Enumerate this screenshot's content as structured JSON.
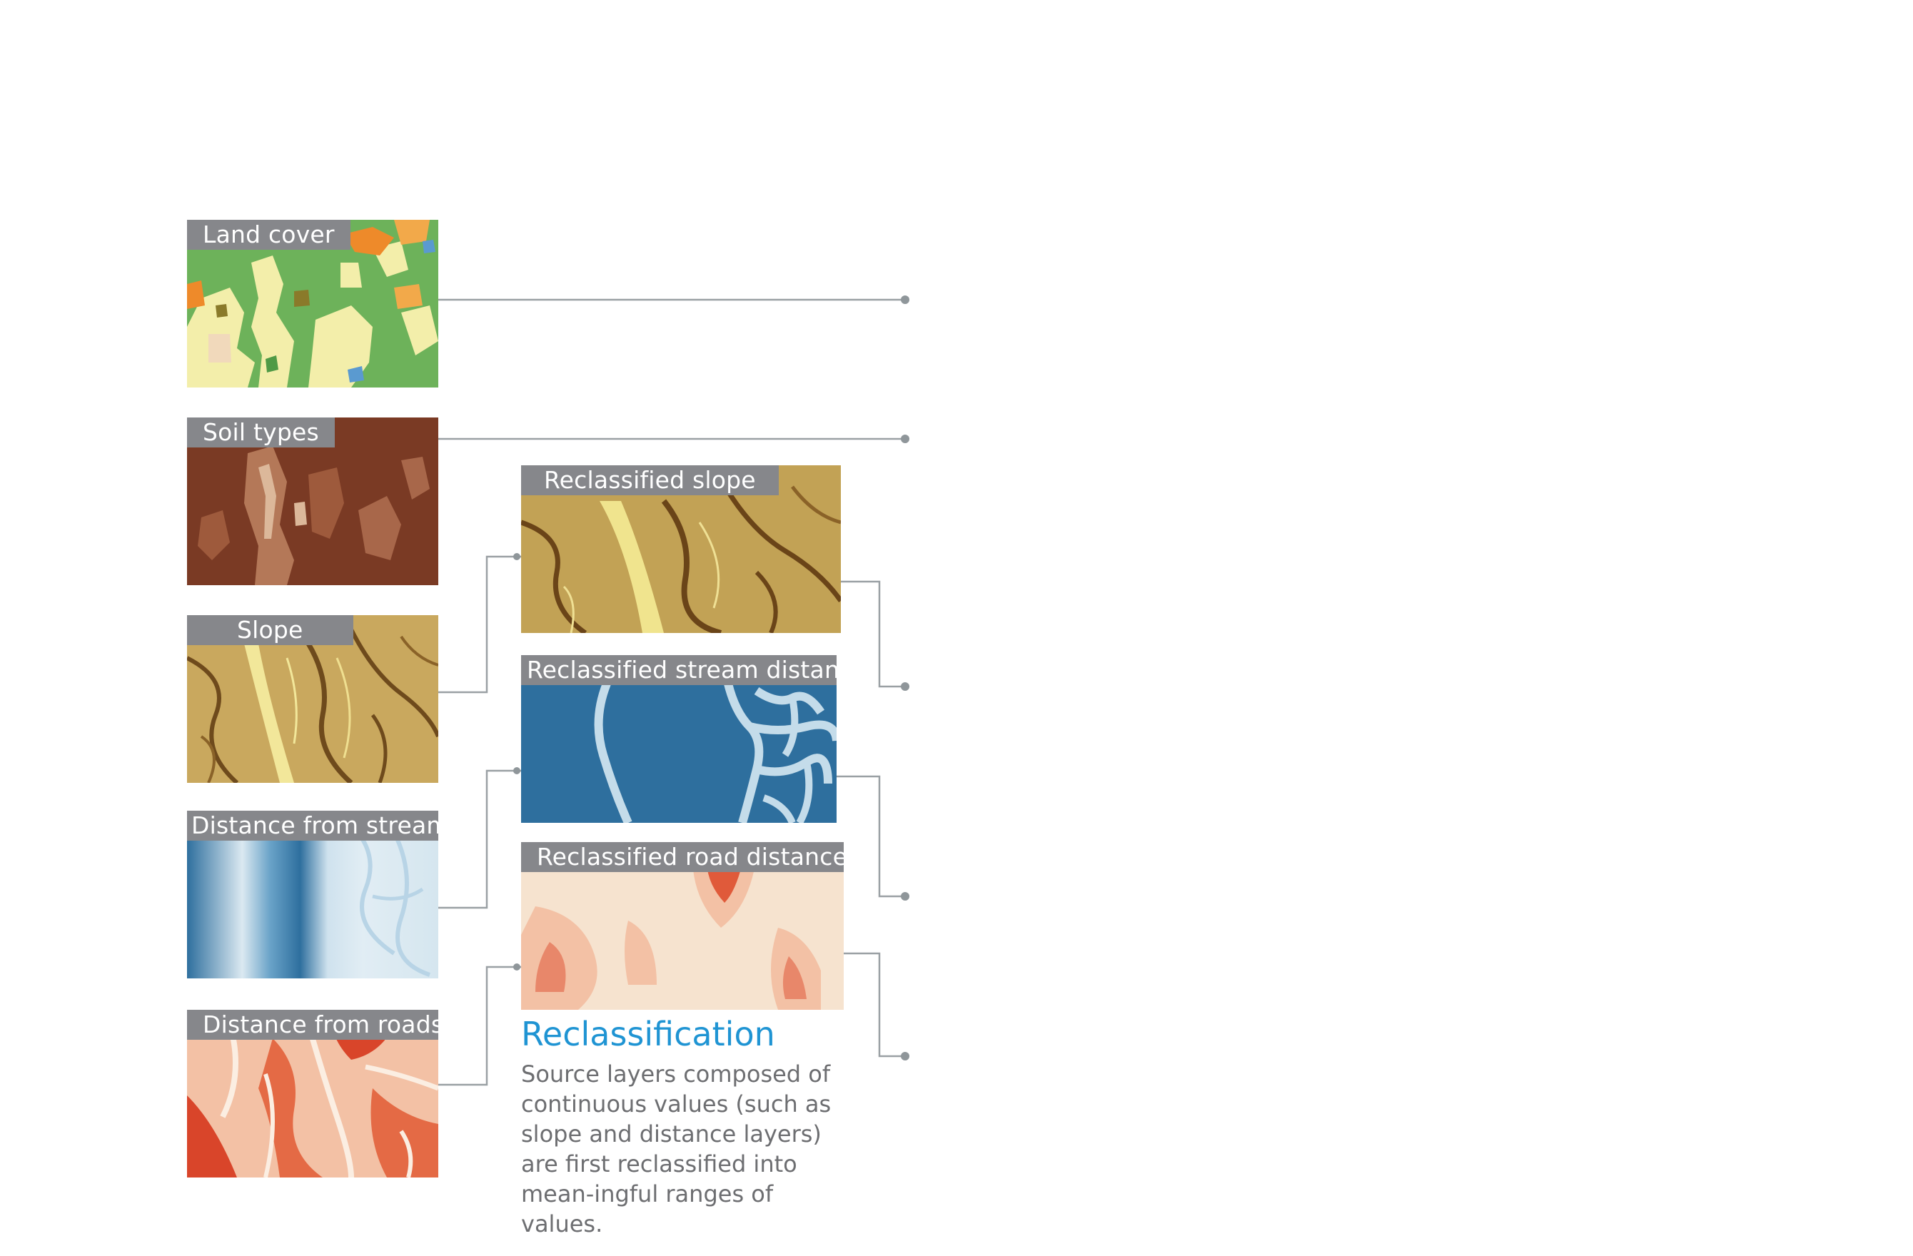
{
  "source_layers": [
    {
      "id": "land-cover",
      "label": "Land cover"
    },
    {
      "id": "soil-types",
      "label": "Soil types"
    },
    {
      "id": "slope",
      "label": "Slope"
    },
    {
      "id": "distance-from-streams",
      "label": "Distance from streams"
    },
    {
      "id": "distance-from-roads",
      "label": "Distance from roads"
    }
  ],
  "reclassified_layers": [
    {
      "id": "reclassified-slope",
      "label": "Reclassified slope"
    },
    {
      "id": "reclassified-stream-distance",
      "label": "Reclassified stream distance"
    },
    {
      "id": "reclassified-road-distance",
      "label": "Reclassified road distance"
    }
  ],
  "reclassification": {
    "title": "Reclassification",
    "description": "Source layers composed of continuous values (such as slope and distance layers) are first reclassified into mean-ingful ranges of values."
  },
  "colors": {
    "label_tab": "#86878b",
    "connector": "#9aa0a4",
    "title_accent": "#1f94d3",
    "body_text": "#6d6e71",
    "land_green": "#6db25a",
    "land_cream": "#f3eeaa",
    "soil_brown": "#7a3a24",
    "slope_tan": "#c9a85e",
    "stream_blue": "#2e6f9e",
    "road_red": "#d9452a",
    "road_cream": "#f6e3cf"
  }
}
